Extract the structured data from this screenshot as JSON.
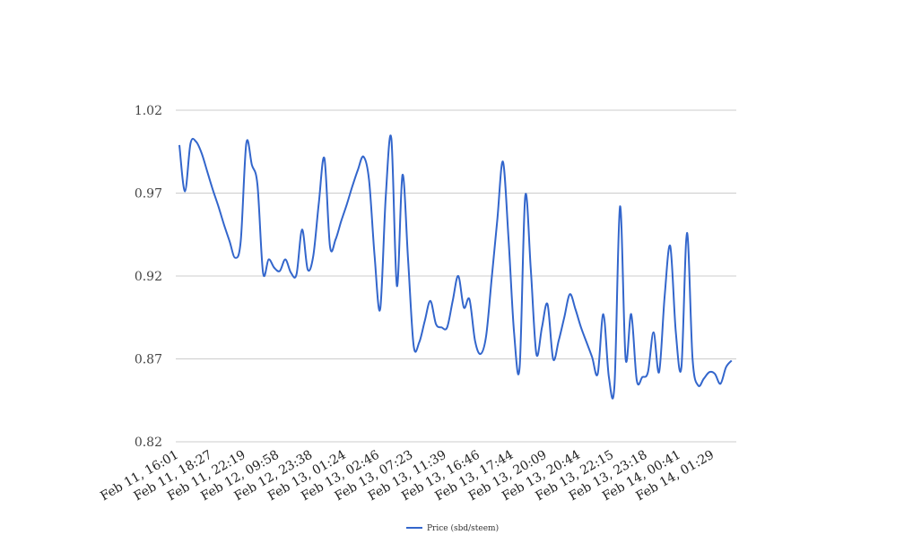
{
  "chart_data": {
    "type": "line",
    "title": "",
    "xlabel": "",
    "ylabel": "",
    "ylim": [
      0.82,
      1.02
    ],
    "y_ticks": [
      "0.82",
      "0.87",
      "0.92",
      "0.97",
      "1.02"
    ],
    "grid": "horizontal",
    "legend_position": "bottom",
    "x_tick_labels": [
      "Feb 11, 16:01",
      "Feb 11, 18:27",
      "Feb 11, 22:19",
      "Feb 12, 09:58",
      "Feb 12, 23:38",
      "Feb 13, 01:24",
      "Feb 13, 02:46",
      "Feb 13, 07:23",
      "Feb 13, 11:39",
      "Feb 13, 16:46",
      "Feb 13, 17:44",
      "Feb 13, 20:09",
      "Feb 13, 20:44",
      "Feb 13, 22:15",
      "Feb 13, 23:18",
      "Feb 14, 00:41",
      "Feb 14, 01:29"
    ],
    "series": [
      {
        "name": "Price (sbd/steem)",
        "color": "#3366cc",
        "values": [
          0.999,
          0.971,
          1.0,
          1.001,
          0.994,
          0.983,
          0.972,
          0.962,
          0.951,
          0.941,
          0.931,
          0.941,
          1.0,
          0.987,
          0.975,
          0.922,
          0.93,
          0.925,
          0.923,
          0.93,
          0.922,
          0.921,
          0.948,
          0.924,
          0.932,
          0.964,
          0.991,
          0.938,
          0.942,
          0.953,
          0.963,
          0.974,
          0.984,
          0.992,
          0.978,
          0.932,
          0.9,
          0.968,
          1.003,
          0.914,
          0.981,
          0.93,
          0.878,
          0.88,
          0.893,
          0.905,
          0.891,
          0.889,
          0.889,
          0.905,
          0.92,
          0.901,
          0.906,
          0.881,
          0.873,
          0.884,
          0.919,
          0.954,
          0.989,
          0.943,
          0.886,
          0.865,
          0.968,
          0.924,
          0.873,
          0.889,
          0.903,
          0.87,
          0.881,
          0.895,
          0.909,
          0.9,
          0.889,
          0.88,
          0.871,
          0.861,
          0.897,
          0.859,
          0.854,
          0.962,
          0.87,
          0.897,
          0.857,
          0.859,
          0.862,
          0.886,
          0.862,
          0.908,
          0.938,
          0.886,
          0.865,
          0.946,
          0.87,
          0.854,
          0.858,
          0.862,
          0.861,
          0.855,
          0.865,
          0.869
        ]
      }
    ]
  }
}
